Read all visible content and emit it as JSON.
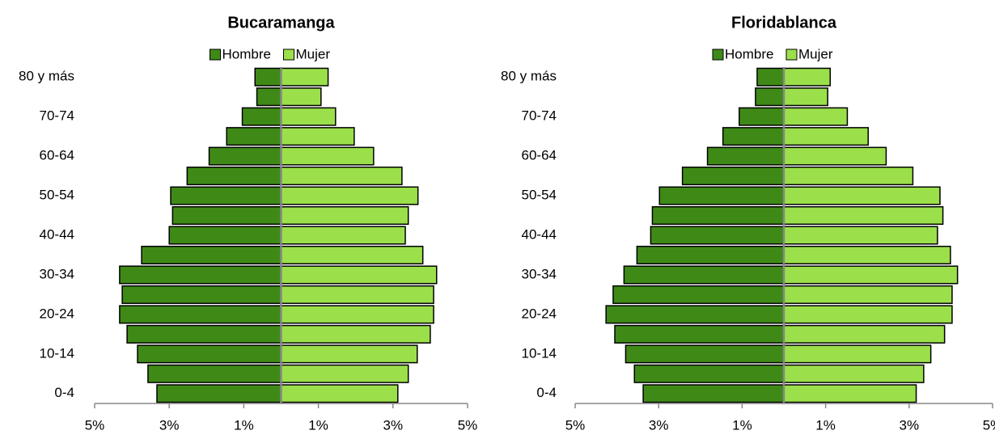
{
  "chart_data": [
    {
      "type": "pyramid",
      "title": "Bucaramanga",
      "categories": [
        "0-4",
        null,
        "10-14",
        null,
        "20-24",
        null,
        "30-34",
        null,
        "40-44",
        null,
        "50-54",
        null,
        "60-64",
        null,
        "70-74",
        null,
        "80 y más"
      ],
      "series": [
        {
          "name": "Hombre",
          "color": "#3f8a17",
          "values": [
            -3.33,
            -3.57,
            -3.85,
            -4.13,
            -4.33,
            -4.26,
            -4.33,
            -3.74,
            -3.0,
            -2.91,
            -2.96,
            -2.52,
            -1.93,
            -1.46,
            -1.04,
            -0.65,
            -0.7
          ]
        },
        {
          "name": "Mujer",
          "color": "#9be04a",
          "values": [
            3.13,
            3.41,
            3.65,
            4.0,
            4.09,
            4.09,
            4.17,
            3.8,
            3.33,
            3.41,
            3.67,
            3.24,
            2.48,
            1.96,
            1.46,
            1.07,
            1.26
          ]
        }
      ],
      "xlim": [
        -5,
        5
      ],
      "xticks": [
        {
          "value": -5,
          "label": "5%"
        },
        {
          "value": -3,
          "label": "3%"
        },
        {
          "value": -1,
          "label": "1%"
        },
        {
          "value": 1,
          "label": "1%"
        },
        {
          "value": 3,
          "label": "3%"
        },
        {
          "value": 5,
          "label": "5%"
        }
      ],
      "legend": "top"
    },
    {
      "type": "pyramid",
      "title": "Floridablanca",
      "categories": [
        "0-4",
        null,
        "10-14",
        null,
        "20-24",
        null,
        "30-34",
        null,
        "40-44",
        null,
        "50-54",
        null,
        "60-64",
        null,
        "70-74",
        null,
        "80 y más"
      ],
      "series": [
        {
          "name": "Hombre",
          "color": "#3f8a17",
          "values": [
            -3.37,
            -3.58,
            -3.79,
            -4.05,
            -4.26,
            -4.09,
            -3.83,
            -3.52,
            -3.19,
            -3.15,
            -2.98,
            -2.43,
            -1.83,
            -1.46,
            -1.07,
            -0.68,
            -0.64
          ]
        },
        {
          "name": "Mujer",
          "color": "#9be04a",
          "values": [
            3.17,
            3.35,
            3.52,
            3.85,
            4.03,
            4.03,
            4.16,
            3.99,
            3.68,
            3.81,
            3.74,
            3.09,
            2.45,
            2.02,
            1.52,
            1.05,
            1.11
          ]
        }
      ],
      "xlim": [
        -5,
        5
      ],
      "xticks": [
        {
          "value": -5,
          "label": "5%"
        },
        {
          "value": -3,
          "label": "3%"
        },
        {
          "value": -1,
          "label": "1%"
        },
        {
          "value": 1,
          "label": "1%"
        },
        {
          "value": 3,
          "label": "3%"
        },
        {
          "value": 5,
          "label": "5%"
        }
      ],
      "legend": "top"
    }
  ]
}
